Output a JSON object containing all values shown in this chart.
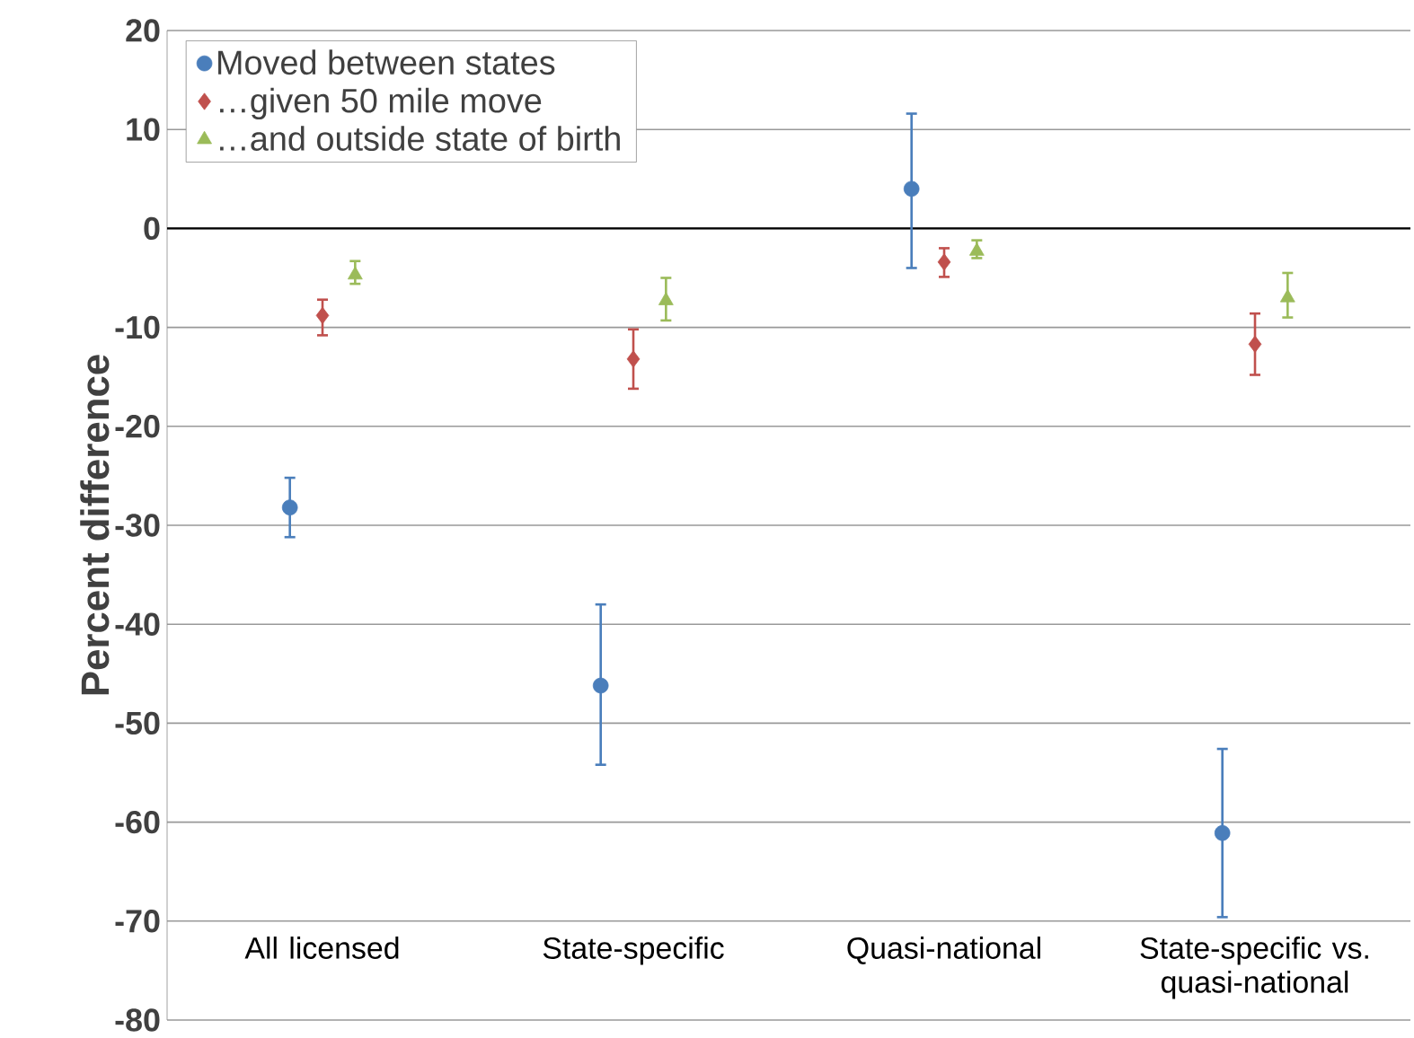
{
  "chart_data": {
    "type": "scatter",
    "ylabel": "Percent difference",
    "categories": [
      "All licensed",
      "State-specific",
      "Quasi-national",
      "State-specific vs. quasi-national"
    ],
    "series": [
      {
        "name": "Moved between states",
        "color": "#4a7ebb",
        "marker": "circle",
        "values": [
          -28.2,
          -46.2,
          4.0,
          -61.1
        ],
        "errors": [
          [
            -31.2,
            -25.2
          ],
          [
            -54.2,
            -38.0
          ],
          [
            -4.0,
            11.6
          ],
          [
            -69.6,
            -52.6
          ]
        ]
      },
      {
        "name": "…given 50 mile move",
        "color": "#c0504d",
        "marker": "diamond",
        "values": [
          -8.8,
          -13.2,
          -3.4,
          -11.7
        ],
        "errors": [
          [
            -10.8,
            -7.2
          ],
          [
            -16.2,
            -10.2
          ],
          [
            -4.9,
            -2.0
          ],
          [
            -14.8,
            -8.6
          ]
        ]
      },
      {
        "name": "…and outside state of birth",
        "color": "#9bbb59",
        "marker": "triangle",
        "values": [
          -4.7,
          -7.3,
          -2.3,
          -7.0
        ],
        "errors": [
          [
            -5.6,
            -3.3
          ],
          [
            -9.3,
            -5.0
          ],
          [
            -3.0,
            -1.2
          ],
          [
            -9.0,
            -4.5
          ]
        ]
      }
    ],
    "ylim": [
      -80,
      20
    ],
    "yticks": [
      -80,
      -70,
      -60,
      -50,
      -40,
      -30,
      -20,
      -10,
      0,
      10,
      20
    ],
    "ref_lines": [
      {
        "axis": "y",
        "value": 0,
        "color": "#000000"
      }
    ],
    "grid": "y",
    "legend": "top left"
  }
}
